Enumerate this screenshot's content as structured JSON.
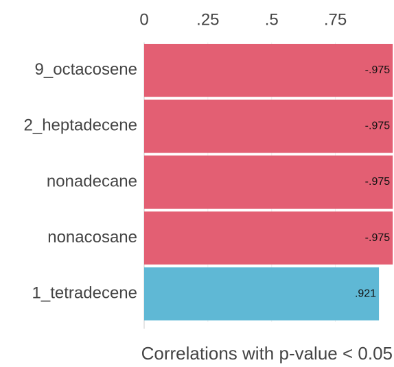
{
  "chart_data": {
    "type": "barh",
    "title": "Correlations with p-value < 0.05",
    "categories": [
      "9_octacosene",
      "2_heptadecene",
      "nonadecane",
      "nonacosane",
      "1_tetradecene"
    ],
    "values": [
      -0.975,
      -0.975,
      -0.975,
      -0.975,
      0.921
    ],
    "value_labels": [
      "-.975",
      "-.975",
      "-.975",
      "-.975",
      ".921"
    ],
    "colors": [
      "#e35f73",
      "#e35f73",
      "#e35f73",
      "#e35f73",
      "#5fb8d5"
    ],
    "xlim": [
      0,
      0.98
    ],
    "xticks": [
      0,
      {
        "value": 0.25,
        "label": ".25"
      },
      {
        "value": 0.5,
        "label": ".5"
      },
      {
        "value": 0.75,
        "label": ".75"
      }
    ],
    "grid": true
  }
}
